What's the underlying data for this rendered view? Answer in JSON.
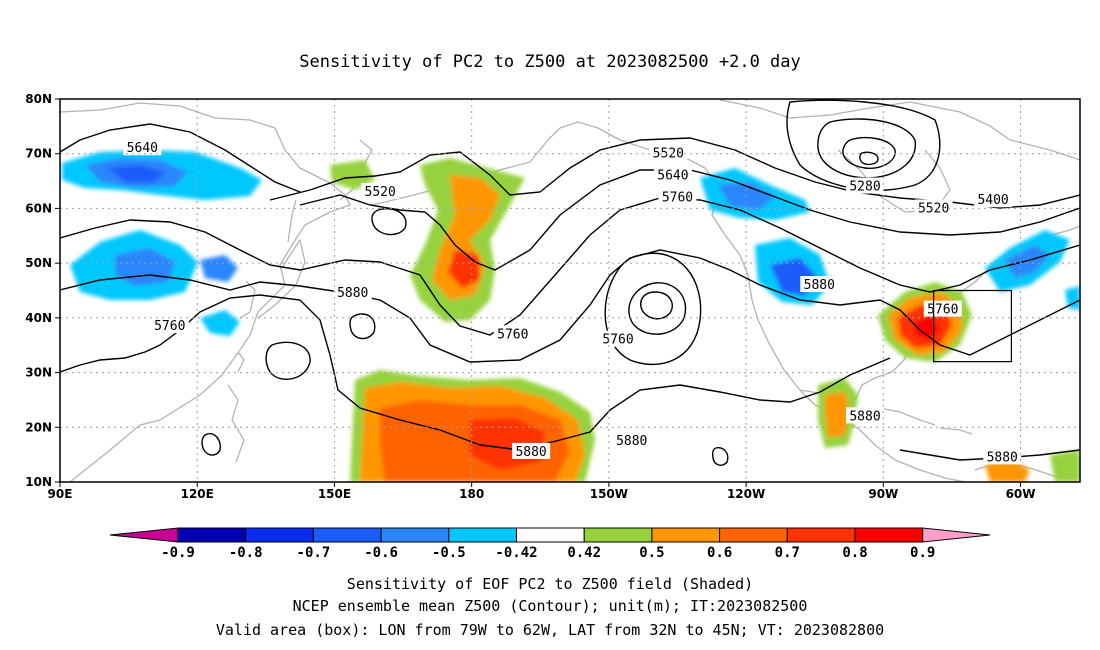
{
  "map": {
    "title": "Sensitivity of PC2 to Z500 at 2023082500 +2.0 day",
    "lat_ticks": [
      {
        "value": 80,
        "label": "80N"
      },
      {
        "value": 70,
        "label": "70N"
      },
      {
        "value": 60,
        "label": "60N"
      },
      {
        "value": 50,
        "label": "50N"
      },
      {
        "value": 40,
        "label": "40N"
      },
      {
        "value": 30,
        "label": "30N"
      },
      {
        "value": 20,
        "label": "20N"
      },
      {
        "value": 10,
        "label": "10N"
      }
    ],
    "lon_ticks": [
      {
        "value": 90,
        "label": "90E"
      },
      {
        "value": 120,
        "label": "120E"
      },
      {
        "value": 150,
        "label": "150E"
      },
      {
        "value": 180,
        "label": "180"
      },
      {
        "value": 210,
        "label": "150W"
      },
      {
        "value": 240,
        "label": "120W"
      },
      {
        "value": 270,
        "label": "90W"
      },
      {
        "value": 300,
        "label": "60W"
      }
    ],
    "extent": {
      "lon_min": 90,
      "lon_max": 313,
      "lat_min": 10,
      "lat_max": 80
    },
    "contour_labels": [
      {
        "text": "5640",
        "lon": 108,
        "lat": 71
      },
      {
        "text": "5520",
        "lon": 160,
        "lat": 63
      },
      {
        "text": "5520",
        "lon": 223,
        "lat": 70
      },
      {
        "text": "5640",
        "lon": 224,
        "lat": 66
      },
      {
        "text": "5760",
        "lon": 225,
        "lat": 62
      },
      {
        "text": "5880",
        "lon": 154,
        "lat": 44.5
      },
      {
        "text": "5760",
        "lon": 114,
        "lat": 38.5
      },
      {
        "text": "5760",
        "lon": 189,
        "lat": 37
      },
      {
        "text": "5760",
        "lon": 212,
        "lat": 36
      },
      {
        "text": "5280",
        "lon": 266,
        "lat": 64
      },
      {
        "text": "5520",
        "lon": 281,
        "lat": 60
      },
      {
        "text": "5400",
        "lon": 294,
        "lat": 61.5
      },
      {
        "text": "5880",
        "lon": 256,
        "lat": 46
      },
      {
        "text": "5760",
        "lon": 283,
        "lat": 41.5
      },
      {
        "text": "5880",
        "lon": 266,
        "lat": 22
      },
      {
        "text": "5880",
        "lon": 193,
        "lat": 15.5
      },
      {
        "text": "5880",
        "lon": 215,
        "lat": 17.5
      },
      {
        "text": "5880",
        "lon": 296,
        "lat": 14.5
      }
    ],
    "valid_box": {
      "lon_min": 281,
      "lon_max": 298,
      "lat_min": 32,
      "lat_max": 45
    },
    "colors": {
      "coast": "#b3b3b3",
      "grid": "#a0a0a0"
    }
  },
  "colorbar": {
    "levels": [
      "-0.9",
      "-0.8",
      "-0.7",
      "-0.6",
      "-0.5",
      "-0.42",
      "0.42",
      "0.5",
      "0.6",
      "0.7",
      "0.8",
      "0.9"
    ],
    "colors": [
      "#0000b4",
      "#0a2cf0",
      "#1b5cfa",
      "#2b86fb",
      "#00c8ff",
      "#ffffff",
      "#96d23c",
      "#ff9600",
      "#ff6400",
      "#ff3200",
      "#ff0000"
    ],
    "low_extend_color": "#c80096",
    "high_extend_color": "#ff9ec8"
  },
  "captions": {
    "line1": "Sensitivity of EOF PC2 to Z500 field (Shaded)",
    "line2": "NCEP ensemble mean Z500 (Contour); unit(m); IT:2023082500",
    "line3": "Valid area (box): LON from 79W to 62W, LAT from 32N to 45N; VT: 2023082800"
  }
}
